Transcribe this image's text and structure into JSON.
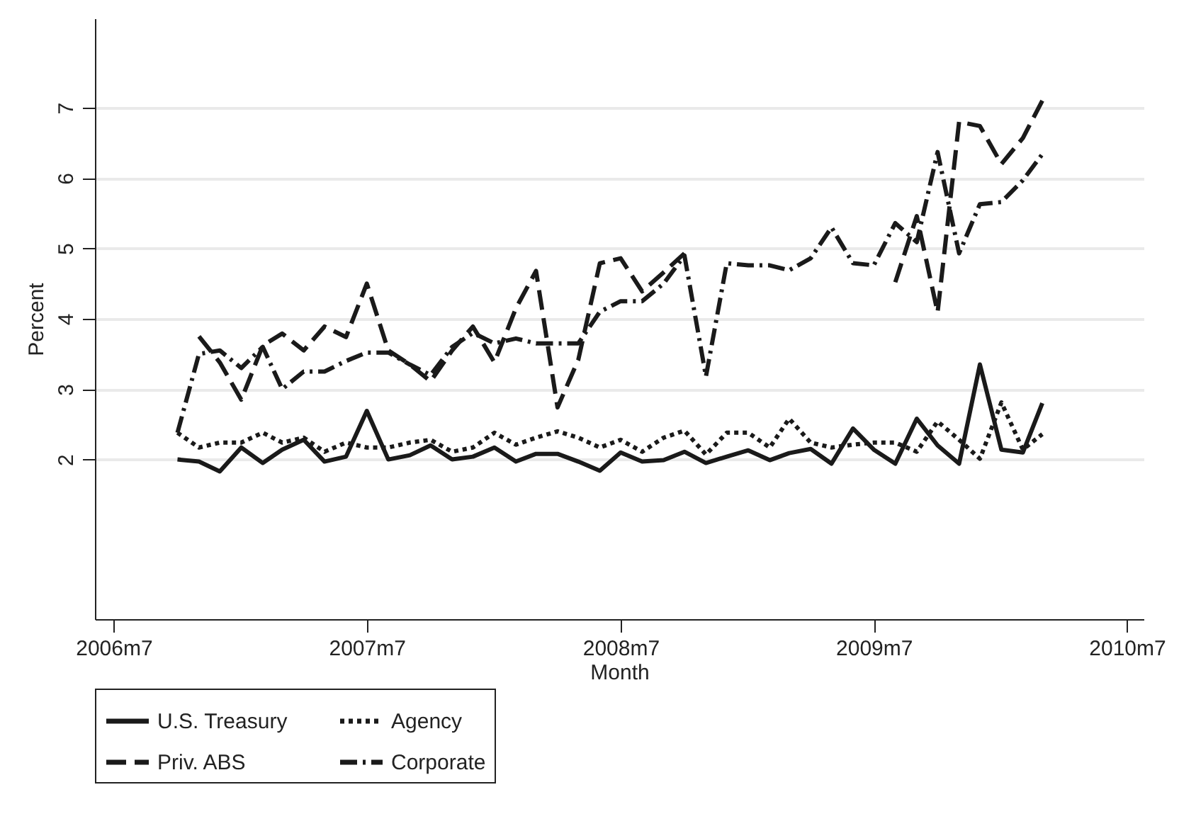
{
  "chart_data": {
    "type": "line",
    "xlabel": "Month",
    "ylabel": "Percent",
    "x": [
      "2006-10",
      "2006-11",
      "2006-12",
      "2007-01",
      "2007-02",
      "2007-03",
      "2007-04",
      "2007-05",
      "2007-06",
      "2007-07",
      "2007-08",
      "2007-09",
      "2007-10",
      "2007-11",
      "2007-12",
      "2008-01",
      "2008-02",
      "2008-03",
      "2008-04",
      "2008-05",
      "2008-06",
      "2008-07",
      "2008-08",
      "2008-09",
      "2008-10",
      "2008-11",
      "2008-12",
      "2009-01",
      "2009-02",
      "2009-03",
      "2009-04",
      "2009-05",
      "2009-06",
      "2009-07",
      "2009-08",
      "2009-09",
      "2009-10",
      "2009-11",
      "2009-12",
      "2010-01",
      "2010-02",
      "2010-03"
    ],
    "xlim": [
      "2006-06-04",
      "2010-07-25"
    ],
    "xticks": [
      {
        "value": "2006-07",
        "label": "2006m7"
      },
      {
        "value": "2007-07",
        "label": "2007m7"
      },
      {
        "value": "2008-07",
        "label": "2008m7"
      },
      {
        "value": "2009-07",
        "label": "2009m7"
      },
      {
        "value": "2010-07",
        "label": "2010m7"
      }
    ],
    "ylim": [
      -0.27,
      8.27
    ],
    "yticks": [
      2,
      3,
      4,
      5,
      6,
      7
    ],
    "grid": "y",
    "legend": "bottom",
    "series": [
      {
        "name": "U.S. Treasury",
        "color": "#1a1a1a",
        "line_style": "solid",
        "values": [
          2.0,
          1.97,
          1.83,
          2.17,
          1.95,
          2.14,
          2.28,
          1.97,
          2.04,
          2.69,
          2.0,
          2.06,
          2.2,
          2.0,
          2.04,
          2.17,
          1.97,
          2.08,
          2.08,
          1.97,
          1.84,
          2.1,
          1.97,
          1.99,
          2.11,
          1.95,
          2.04,
          2.13,
          1.99,
          2.09,
          2.15,
          1.94,
          2.44,
          2.14,
          1.94,
          2.58,
          2.2,
          1.94,
          3.35,
          2.14,
          2.1,
          2.8
        ]
      },
      {
        "name": "Agency",
        "color": "#1a1a1a",
        "line_style": "dotted",
        "values": [
          2.38,
          2.17,
          2.24,
          2.24,
          2.38,
          2.24,
          2.31,
          2.11,
          2.24,
          2.17,
          2.17,
          2.24,
          2.28,
          2.11,
          2.17,
          2.38,
          2.21,
          2.31,
          2.4,
          2.31,
          2.17,
          2.28,
          2.11,
          2.31,
          2.41,
          2.07,
          2.38,
          2.38,
          2.17,
          2.58,
          2.24,
          2.17,
          2.21,
          2.24,
          2.24,
          2.11,
          2.54,
          2.28,
          2.01,
          2.81,
          2.14,
          2.36
        ]
      },
      {
        "name": "Priv. ABS",
        "color": "#1a1a1a",
        "line_style": "dashed",
        "values": [
          null,
          3.75,
          3.38,
          2.85,
          3.62,
          3.79,
          3.55,
          3.89,
          3.74,
          4.5,
          3.55,
          3.35,
          3.11,
          3.55,
          3.89,
          3.38,
          4.15,
          4.68,
          2.74,
          3.42,
          4.79,
          4.86,
          4.39,
          4.66,
          4.93,
          null,
          null,
          null,
          null,
          null,
          null,
          null,
          null,
          null,
          4.52,
          5.46,
          4.09,
          6.8,
          6.74,
          6.2,
          6.57,
          7.1
        ]
      },
      {
        "name": "Corporate",
        "color": "#1a1a1a",
        "line_style": "dashdot",
        "values": [
          2.38,
          3.5,
          3.55,
          3.3,
          3.6,
          3.0,
          3.25,
          3.25,
          3.4,
          3.52,
          3.52,
          3.35,
          3.2,
          3.6,
          3.8,
          3.65,
          3.72,
          3.65,
          3.65,
          3.65,
          4.1,
          4.25,
          4.25,
          4.5,
          4.9,
          3.18,
          4.79,
          4.76,
          4.76,
          4.69,
          4.86,
          5.3,
          4.79,
          4.76,
          5.36,
          5.09,
          6.37,
          4.93,
          5.63,
          5.66,
          5.97,
          6.34
        ]
      }
    ]
  }
}
